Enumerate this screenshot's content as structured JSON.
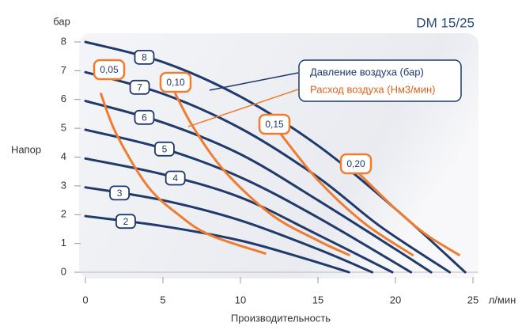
{
  "chart_data": {
    "type": "line",
    "title": "DM 15/25",
    "y_unit": "бар",
    "y_label": "Напор",
    "x_label": "Производительность",
    "x_unit": "л/мин",
    "legend": [
      "Давление воздуха (бар)",
      "Расход воздуха (Нм3/мин)"
    ],
    "xlim": [
      0,
      25
    ],
    "xticks": [
      0,
      5,
      10,
      15,
      20,
      25
    ],
    "ylim": [
      0,
      8
    ],
    "yticks": [
      0,
      1,
      2,
      3,
      4,
      5,
      6,
      7,
      8
    ],
    "series": [
      {
        "name": "8",
        "color": "#1f3a6b",
        "x": [
          0,
          5,
          10,
          15,
          20,
          24.5
        ],
        "values": [
          8,
          7.3,
          6.1,
          4.4,
          2.2,
          0
        ]
      },
      {
        "name": "7",
        "color": "#1f3a6b",
        "x": [
          0,
          5,
          10,
          15,
          19,
          23.5
        ],
        "values": [
          6.95,
          6.2,
          5,
          3.3,
          1.6,
          0
        ]
      },
      {
        "name": "6",
        "color": "#1f3a6b",
        "x": [
          0,
          5,
          10,
          15,
          20,
          22.3
        ],
        "values": [
          5.95,
          5.2,
          4.1,
          2.5,
          0.8,
          0
        ]
      },
      {
        "name": "5",
        "color": "#1f3a6b",
        "x": [
          0,
          5,
          10,
          15,
          21
        ],
        "values": [
          4.95,
          4.3,
          3.3,
          1.9,
          0
        ]
      },
      {
        "name": "4",
        "color": "#1f3a6b",
        "x": [
          0,
          5,
          10,
          15,
          19.8
        ],
        "values": [
          3.95,
          3.4,
          2.6,
          1.3,
          0
        ]
      },
      {
        "name": "3",
        "color": "#1f3a6b",
        "x": [
          0,
          5,
          10,
          15,
          18.5
        ],
        "values": [
          2.95,
          2.5,
          1.8,
          0.8,
          0
        ]
      },
      {
        "name": "2",
        "color": "#1f3a6b",
        "x": [
          0,
          5,
          10,
          14,
          17
        ],
        "values": [
          1.95,
          1.6,
          1.1,
          0.5,
          0
        ]
      },
      {
        "name": "0,05",
        "color": "#f07c30",
        "x": [
          1,
          2,
          4,
          6,
          8,
          11.6
        ],
        "values": [
          6.2,
          4.8,
          3,
          2,
          1.3,
          0.65
        ]
      },
      {
        "name": "0,10",
        "color": "#f07c30",
        "x": [
          5.8,
          7,
          9,
          12,
          15,
          17
        ],
        "values": [
          6.2,
          5,
          3.5,
          2,
          1.1,
          0.6
        ]
      },
      {
        "name": "0,15",
        "color": "#f07c30",
        "x": [
          12.6,
          15,
          18,
          21.1
        ],
        "values": [
          4.8,
          3.2,
          1.7,
          0.6
        ]
      },
      {
        "name": "0,20",
        "color": "#f07c30",
        "x": [
          17.7,
          20,
          22,
          24.1
        ],
        "values": [
          3.4,
          2.2,
          1.3,
          0.6
        ]
      }
    ]
  }
}
